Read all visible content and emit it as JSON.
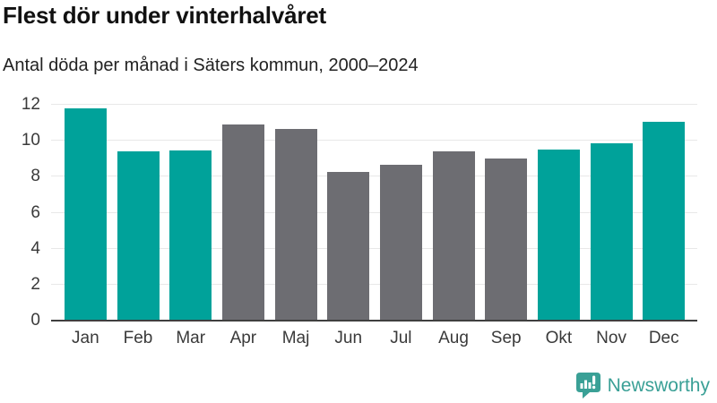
{
  "header": {
    "title": "Flest dör under vinterhalvåret",
    "subtitle": "Antal döda per månad i Säters kommun, 2000–2024"
  },
  "chart_data": {
    "type": "bar",
    "title": "Flest dör under vinterhalvåret",
    "subtitle": "Antal döda per månad i Säters kommun, 2000–2024",
    "categories": [
      "Jan",
      "Feb",
      "Mar",
      "Apr",
      "Maj",
      "Jun",
      "Jul",
      "Aug",
      "Sep",
      "Okt",
      "Nov",
      "Dec"
    ],
    "values": [
      11.8,
      9.4,
      9.45,
      10.9,
      10.65,
      8.25,
      8.65,
      9.4,
      9.0,
      9.5,
      9.85,
      11.05
    ],
    "bar_colors": [
      "teal",
      "teal",
      "teal",
      "gray",
      "gray",
      "gray",
      "gray",
      "gray",
      "gray",
      "teal",
      "teal",
      "teal"
    ],
    "colors": {
      "teal": "#00a29a",
      "gray": "#6d6d72"
    },
    "xlabel": "",
    "ylabel": "",
    "ylim": [
      0,
      12
    ],
    "yticks": [
      0,
      2,
      4,
      6,
      8,
      10,
      12
    ],
    "grid": "horizontal",
    "grid_color": "#e8e8e8",
    "axis_line_color": "#3f3f3f",
    "label_color": "#3a3a3a",
    "legend": "none"
  },
  "branding": {
    "logo_text": "Newsworthy",
    "logo_color": "#3aa096",
    "logo_icon": "bar-chart-speech-bubble-icon"
  }
}
